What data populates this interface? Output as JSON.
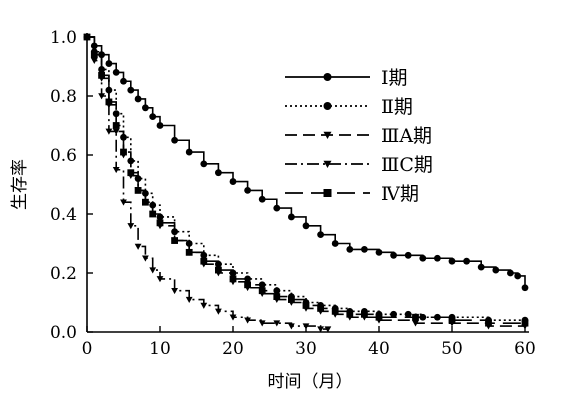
{
  "chart_data": {
    "type": "line",
    "xlabel": "时间（月）",
    "ylabel": "生存率",
    "xlim": [
      0,
      60
    ],
    "ylim": [
      0,
      1.0
    ],
    "x_ticks": [
      "0",
      "10",
      "20",
      "30",
      "40",
      "50",
      "60"
    ],
    "y_ticks": [
      "0.0",
      "0.2",
      "0.4",
      "0.6",
      "0.8",
      "1.0"
    ],
    "grid": false,
    "legend_position": "top-right",
    "series": [
      {
        "name": "Ⅰ期",
        "line_style": "solid",
        "marker": "circle",
        "x": [
          0,
          1,
          2,
          3,
          4,
          5,
          6,
          7,
          8,
          9,
          10,
          12,
          14,
          16,
          18,
          20,
          22,
          24,
          26,
          28,
          30,
          32,
          34,
          36,
          38,
          40,
          42,
          44,
          46,
          48,
          50,
          52,
          54,
          56,
          58,
          59,
          60
        ],
        "y": [
          1.0,
          0.97,
          0.94,
          0.91,
          0.88,
          0.85,
          0.82,
          0.79,
          0.76,
          0.73,
          0.7,
          0.65,
          0.61,
          0.57,
          0.54,
          0.51,
          0.48,
          0.45,
          0.42,
          0.39,
          0.36,
          0.33,
          0.3,
          0.28,
          0.28,
          0.27,
          0.26,
          0.26,
          0.25,
          0.25,
          0.24,
          0.24,
          0.22,
          0.21,
          0.2,
          0.19,
          0.15
        ]
      },
      {
        "name": "Ⅱ期",
        "line_style": "dotted",
        "marker": "circle",
        "x": [
          0,
          1,
          2,
          3,
          4,
          5,
          6,
          7,
          8,
          9,
          10,
          12,
          14,
          16,
          18,
          20,
          22,
          24,
          26,
          28,
          30,
          32,
          34,
          36,
          38,
          40,
          42,
          44,
          46,
          48,
          50,
          55,
          60
        ],
        "y": [
          1.0,
          0.95,
          0.89,
          0.82,
          0.74,
          0.66,
          0.58,
          0.52,
          0.47,
          0.43,
          0.39,
          0.34,
          0.3,
          0.26,
          0.23,
          0.2,
          0.18,
          0.16,
          0.14,
          0.12,
          0.1,
          0.09,
          0.08,
          0.07,
          0.07,
          0.06,
          0.06,
          0.06,
          0.05,
          0.05,
          0.05,
          0.04,
          0.04
        ]
      },
      {
        "name": "ⅢA期",
        "line_style": "dashed",
        "marker": "triangle-down",
        "x": [
          0,
          1,
          2,
          3,
          4,
          5,
          6,
          7,
          8,
          9,
          10,
          12,
          14,
          16,
          18,
          20,
          22,
          24,
          26,
          28,
          30,
          32,
          34,
          36,
          38,
          40,
          45,
          50,
          55,
          60
        ],
        "y": [
          1.0,
          0.94,
          0.86,
          0.77,
          0.68,
          0.6,
          0.53,
          0.48,
          0.44,
          0.4,
          0.36,
          0.31,
          0.27,
          0.23,
          0.2,
          0.17,
          0.15,
          0.13,
          0.11,
          0.1,
          0.08,
          0.07,
          0.06,
          0.05,
          0.05,
          0.04,
          0.03,
          0.03,
          0.02,
          0.02
        ]
      },
      {
        "name": "ⅢC期",
        "line_style": "dash-dot",
        "marker": "triangle-down",
        "x": [
          0,
          1,
          2,
          3,
          4,
          5,
          6,
          7,
          8,
          9,
          10,
          12,
          14,
          16,
          18,
          20,
          22,
          24,
          26,
          28,
          30,
          32,
          33
        ],
        "y": [
          1.0,
          0.92,
          0.8,
          0.68,
          0.55,
          0.44,
          0.36,
          0.29,
          0.25,
          0.21,
          0.18,
          0.14,
          0.11,
          0.09,
          0.07,
          0.05,
          0.04,
          0.03,
          0.03,
          0.02,
          0.02,
          0.01,
          0.01
        ]
      },
      {
        "name": "Ⅳ期",
        "line_style": "long-dash",
        "marker": "square",
        "x": [
          0,
          1,
          2,
          3,
          4,
          5,
          6,
          7,
          8,
          9,
          10,
          12,
          14,
          16,
          18,
          20,
          22,
          24,
          26,
          28,
          30,
          32,
          34,
          36,
          38,
          40,
          45,
          50,
          55,
          60
        ],
        "y": [
          1.0,
          0.94,
          0.87,
          0.78,
          0.7,
          0.61,
          0.54,
          0.48,
          0.44,
          0.4,
          0.37,
          0.31,
          0.27,
          0.24,
          0.21,
          0.18,
          0.16,
          0.14,
          0.12,
          0.11,
          0.09,
          0.08,
          0.07,
          0.06,
          0.06,
          0.05,
          0.05,
          0.04,
          0.03,
          0.03
        ]
      }
    ]
  },
  "colors": {
    "ink": "#000000",
    "background": "#ffffff"
  }
}
